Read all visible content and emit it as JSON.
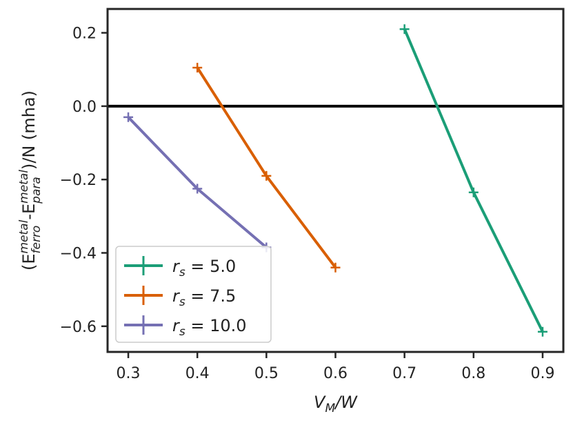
{
  "chart_data": {
    "type": "line",
    "xlabel_main": "V",
    "xlabel_sub": "M",
    "xlabel_tail": "/W",
    "ylabel_parts": {
      "open": "(E",
      "ferro_sup": "metal",
      "ferro_sub": "ferro",
      "dash": "-E",
      "para_sup": "metal",
      "para_sub": "para",
      "close": ")/N (mha)"
    },
    "xlim": [
      0.27,
      0.93
    ],
    "ylim": [
      -0.67,
      0.265
    ],
    "x_ticks": [
      0.3,
      0.4,
      0.5,
      0.6,
      0.7,
      0.8,
      0.9
    ],
    "x_tick_labels": [
      "0.3",
      "0.4",
      "0.5",
      "0.6",
      "0.7",
      "0.8",
      "0.9"
    ],
    "y_ticks": [
      0.2,
      0.0,
      -0.2,
      -0.4,
      -0.6
    ],
    "y_tick_labels": [
      "0.2",
      "0.0",
      "−0.2",
      "−0.4",
      "−0.6"
    ],
    "reference_line_y": 0.0,
    "grid": false,
    "legend_position": "bottom-left",
    "series": [
      {
        "name_var": "r",
        "name_sub": "s",
        "name_value": " = 5.0",
        "color": "#1b9e77",
        "x": [
          0.7,
          0.8,
          0.9
        ],
        "y": [
          0.21,
          -0.235,
          -0.615
        ]
      },
      {
        "name_var": "r",
        "name_sub": "s",
        "name_value": " = 7.5",
        "color": "#d95f02",
        "x": [
          0.4,
          0.5,
          0.6
        ],
        "y": [
          0.105,
          -0.19,
          -0.44
        ]
      },
      {
        "name_var": "r",
        "name_sub": "s",
        "name_value": " = 10.0",
        "color": "#7570b3",
        "x": [
          0.3,
          0.4,
          0.5
        ],
        "y": [
          -0.03,
          -0.225,
          -0.385
        ]
      }
    ]
  }
}
